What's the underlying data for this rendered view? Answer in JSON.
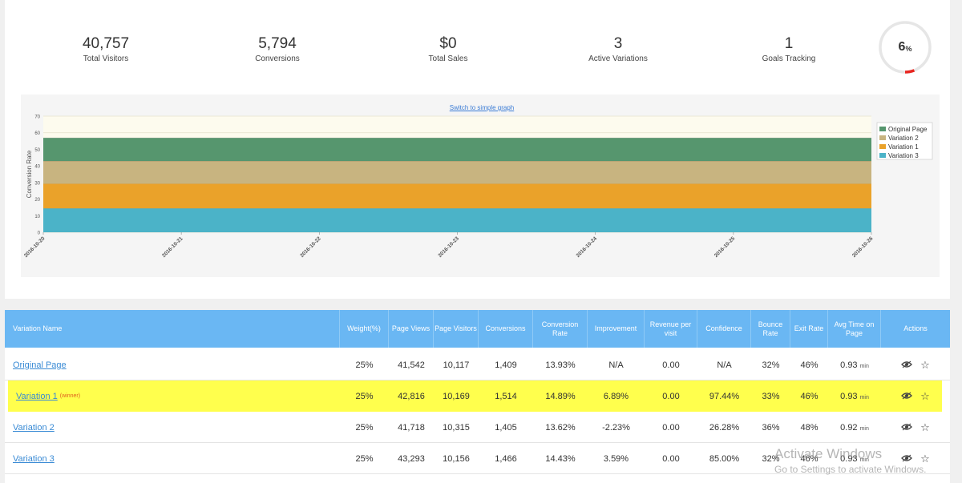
{
  "stats": [
    {
      "value": "40,757",
      "label": "Total Visitors"
    },
    {
      "value": "5,794",
      "label": "Conversions"
    },
    {
      "value": "$0",
      "label": "Total Sales"
    },
    {
      "value": "3",
      "label": "Active Variations"
    },
    {
      "value": "1",
      "label": "Goals Tracking"
    }
  ],
  "gauge": {
    "value": "6",
    "unit": "%",
    "fraction": 0.06,
    "color": "#e8251f",
    "track_color": "#e6e6e6"
  },
  "chart": {
    "switch_label": "Switch to simple graph"
  },
  "chart_data": {
    "type": "area",
    "ylabel": "Conversion Rate",
    "xlabel": "",
    "ylim": [
      0,
      70
    ],
    "yticks": [
      0,
      10,
      20,
      30,
      40,
      50,
      60,
      70
    ],
    "categories": [
      "2016-10-20",
      "2016-10-21",
      "2016-10-22",
      "2016-10-23",
      "2016-10-24",
      "2016-10-25",
      "2016-10-26"
    ],
    "stacked": true,
    "legend_position": "right",
    "series": [
      {
        "name": "Variation 3",
        "color": "#4bb3c8",
        "values": [
          14.43,
          14.43,
          14.43,
          14.43,
          14.43,
          14.43,
          14.43
        ]
      },
      {
        "name": "Variation 1",
        "color": "#eaa22a",
        "values": [
          14.89,
          14.89,
          14.89,
          14.89,
          14.89,
          14.89,
          14.89
        ]
      },
      {
        "name": "Variation 2",
        "color": "#c8b480",
        "values": [
          13.62,
          13.62,
          13.62,
          13.62,
          13.62,
          13.62,
          13.62
        ]
      },
      {
        "name": "Original Page",
        "color": "#56966e",
        "values": [
          13.93,
          13.93,
          13.93,
          13.93,
          13.93,
          13.93,
          13.93
        ]
      }
    ],
    "legend_order": [
      "Original Page",
      "Variation 2",
      "Variation 1",
      "Variation 3"
    ]
  },
  "table": {
    "headers": [
      "Variation Name",
      "Weight(%)",
      "Page Views",
      "Page Visitors",
      "Conversions",
      "Conversion Rate",
      "Improvement",
      "Revenue per visit",
      "Confidence",
      "Bounce Rate",
      "Exit Rate",
      "Avg Time on Page",
      "Actions"
    ],
    "time_unit": "min",
    "winner_label": "(winner)",
    "rows": [
      {
        "name": "Original Page",
        "winner": false,
        "weight": "25%",
        "views": "41,542",
        "visitors": "10,117",
        "conversions": "1,409",
        "rate": "13.93%",
        "improvement": "N/A",
        "revenue": "0.00",
        "confidence": "N/A",
        "bounce": "32%",
        "exit": "46%",
        "avgtime": "0.93"
      },
      {
        "name": "Variation 1",
        "winner": true,
        "weight": "25%",
        "views": "42,816",
        "visitors": "10,169",
        "conversions": "1,514",
        "rate": "14.89%",
        "improvement": "6.89%",
        "revenue": "0.00",
        "confidence": "97.44%",
        "bounce": "33%",
        "exit": "46%",
        "avgtime": "0.93"
      },
      {
        "name": "Variation 2",
        "winner": false,
        "weight": "25%",
        "views": "41,718",
        "visitors": "10,315",
        "conversions": "1,405",
        "rate": "13.62%",
        "improvement": "-2.23%",
        "revenue": "0.00",
        "confidence": "26.28%",
        "bounce": "36%",
        "exit": "48%",
        "avgtime": "0.92"
      },
      {
        "name": "Variation 3",
        "winner": false,
        "weight": "25%",
        "views": "43,293",
        "visitors": "10,156",
        "conversions": "1,466",
        "rate": "14.43%",
        "improvement": "3.59%",
        "revenue": "0.00",
        "confidence": "85.00%",
        "bounce": "32%",
        "exit": "46%",
        "avgtime": "0.93"
      }
    ],
    "icons": {
      "view": "eye-icon",
      "favorite": "star-icon"
    }
  },
  "watermark": {
    "line1": "Activate Windows",
    "line2": "Go to Settings to activate Windows."
  }
}
